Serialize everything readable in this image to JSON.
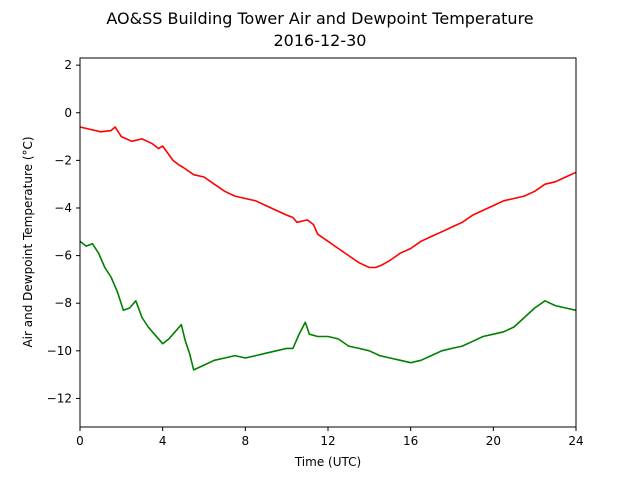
{
  "chart_data": {
    "type": "line",
    "title": "AO&SS Building Tower Air and Dewpoint Temperature",
    "subtitle": "2016-12-30",
    "xlabel": "Time (UTC)",
    "ylabel": "Air and Dewpoint Temperature (°C)",
    "xlim": [
      0,
      24
    ],
    "ylim": [
      -13.2,
      2.3
    ],
    "xticks": [
      0,
      4,
      8,
      12,
      16,
      20,
      24
    ],
    "yticks": [
      2,
      0,
      -2,
      -4,
      -6,
      -8,
      -10,
      -12
    ],
    "xtick_labels": [
      "0",
      "4",
      "8",
      "12",
      "16",
      "20",
      "24"
    ],
    "ytick_labels": [
      "2",
      "0",
      "−2",
      "−4",
      "−6",
      "−8",
      "−10",
      "−12"
    ],
    "grid": false,
    "series": [
      {
        "color": "#ff0000",
        "x": [
          0,
          0.5,
          1,
          1.5,
          1.7,
          2,
          2.5,
          3,
          3.5,
          3.8,
          4,
          4.5,
          4.8,
          5,
          5.5,
          6,
          6.5,
          7,
          7.5,
          8,
          8.5,
          9,
          9.5,
          10,
          10.3,
          10.5,
          11,
          11.3,
          11.5,
          12,
          12.5,
          13,
          13.5,
          14,
          14.3,
          14.6,
          15,
          15.5,
          16,
          16.5,
          17,
          17.5,
          18,
          18.5,
          19,
          19.5,
          20,
          20.5,
          21,
          21.5,
          22,
          22.5,
          23,
          23.5,
          24
        ],
        "y": [
          -0.6,
          -0.7,
          -0.8,
          -0.75,
          -0.6,
          -1.0,
          -1.2,
          -1.1,
          -1.3,
          -1.5,
          -1.4,
          -2.0,
          -2.2,
          -2.3,
          -2.6,
          -2.7,
          -3.0,
          -3.3,
          -3.5,
          -3.6,
          -3.7,
          -3.9,
          -4.1,
          -4.3,
          -4.4,
          -4.6,
          -4.5,
          -4.7,
          -5.1,
          -5.4,
          -5.7,
          -6.0,
          -6.3,
          -6.5,
          -6.5,
          -6.4,
          -6.2,
          -5.9,
          -5.7,
          -5.4,
          -5.2,
          -5.0,
          -4.8,
          -4.6,
          -4.3,
          -4.1,
          -3.9,
          -3.7,
          -3.6,
          -3.5,
          -3.3,
          -3.0,
          -2.9,
          -2.7,
          -2.5
        ]
      },
      {
        "color": "#008000",
        "x": [
          0,
          0.3,
          0.6,
          0.9,
          1.2,
          1.5,
          1.8,
          2.1,
          2.4,
          2.7,
          3,
          3.3,
          3.6,
          4,
          4.3,
          4.6,
          4.9,
          5.1,
          5.3,
          5.5,
          6,
          6.5,
          7,
          7.5,
          8,
          8.5,
          9,
          9.5,
          10,
          10.3,
          10.6,
          10.9,
          11.1,
          11.5,
          12,
          12.5,
          13,
          13.5,
          14,
          14.5,
          15,
          15.5,
          16,
          16.5,
          17,
          17.5,
          18,
          18.5,
          19,
          19.5,
          20,
          20.5,
          21,
          21.5,
          22,
          22.5,
          23,
          23.5,
          24
        ],
        "y": [
          -5.4,
          -5.6,
          -5.5,
          -5.9,
          -6.5,
          -6.9,
          -7.5,
          -8.3,
          -8.2,
          -7.9,
          -8.6,
          -9.0,
          -9.3,
          -9.7,
          -9.5,
          -9.2,
          -8.9,
          -9.6,
          -10.1,
          -10.8,
          -10.6,
          -10.4,
          -10.3,
          -10.2,
          -10.3,
          -10.2,
          -10.1,
          -10.0,
          -9.9,
          -9.9,
          -9.3,
          -8.8,
          -9.3,
          -9.4,
          -9.4,
          -9.5,
          -9.8,
          -9.9,
          -10.0,
          -10.2,
          -10.3,
          -10.4,
          -10.5,
          -10.4,
          -10.2,
          -10.0,
          -9.9,
          -9.8,
          -9.6,
          -9.4,
          -9.3,
          -9.2,
          -9.0,
          -8.6,
          -8.2,
          -7.9,
          -8.1,
          -8.2,
          -8.3
        ]
      }
    ]
  }
}
